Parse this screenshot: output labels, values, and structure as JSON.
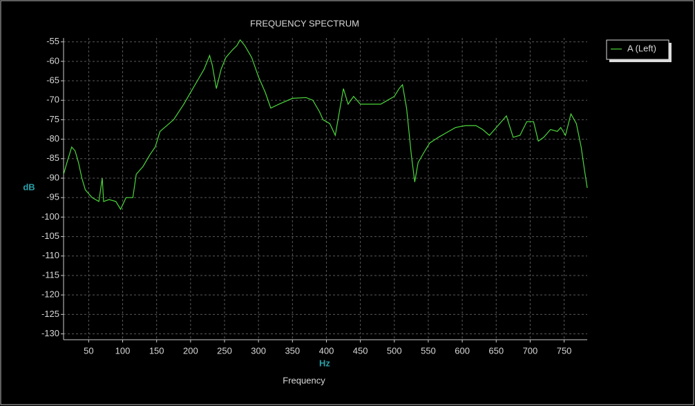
{
  "chart_data": {
    "type": "line",
    "title": "FREQUENCY SPECTRUM",
    "x_label": "Hz",
    "y_label": "dB",
    "subtitle": "Frequency",
    "xlim": [
      13,
      784
    ],
    "ylim": [
      -131.5,
      -54
    ],
    "xticks": [
      50,
      100,
      150,
      200,
      250,
      300,
      350,
      400,
      450,
      500,
      550,
      600,
      650,
      700,
      750
    ],
    "yticks": [
      -55,
      -60,
      -65,
      -70,
      -75,
      -80,
      -85,
      -90,
      -95,
      -100,
      -105,
      -110,
      -115,
      -120,
      -125,
      -130
    ],
    "grid": true,
    "legend": "upper right",
    "series": [
      {
        "name": "A (Left)",
        "color": "#4cd83c",
        "x": [
          13,
          18,
          25,
          30,
          35,
          40,
          45,
          55,
          65,
          70,
          72,
          80,
          90,
          97,
          105,
          115,
          120,
          130,
          140,
          148,
          155,
          165,
          175,
          190,
          200,
          210,
          220,
          228,
          232,
          238,
          245,
          252,
          262,
          268,
          273,
          280,
          290,
          300,
          310,
          318,
          330,
          350,
          370,
          380,
          390,
          395,
          405,
          413,
          425,
          432,
          440,
          450,
          480,
          490,
          500,
          507,
          512,
          518,
          525,
          530,
          535,
          545,
          552,
          565,
          575,
          590,
          605,
          620,
          630,
          640,
          655,
          665,
          675,
          685,
          695,
          705,
          712,
          720,
          730,
          740,
          745,
          752,
          760,
          768,
          775,
          780,
          784
        ],
        "values": [
          -89,
          -86,
          -82,
          -83,
          -86,
          -90,
          -93,
          -95,
          -96,
          -90,
          -96,
          -95.5,
          -96,
          -98,
          -95,
          -95,
          -89,
          -87,
          -84,
          -82,
          -78,
          -76.5,
          -75,
          -71,
          -68,
          -65,
          -62,
          -58.5,
          -61,
          -67,
          -62,
          -59,
          -57,
          -56,
          -54.5,
          -56,
          -59,
          -64,
          -68,
          -72,
          -71,
          -69.5,
          -69.3,
          -70,
          -73,
          -75,
          -76,
          -79,
          -67,
          -71,
          -69,
          -71,
          -71,
          -70,
          -69,
          -67,
          -66,
          -72,
          -84,
          -91,
          -86,
          -83,
          -81,
          -79.5,
          -78.5,
          -77,
          -76.5,
          -76.5,
          -77.5,
          -79,
          -76,
          -74,
          -79.5,
          -79,
          -75.5,
          -75.5,
          -80.5,
          -79.5,
          -77.5,
          -78,
          -77,
          -79,
          -73.5,
          -76,
          -82,
          -88,
          -92.5
        ]
      }
    ]
  }
}
